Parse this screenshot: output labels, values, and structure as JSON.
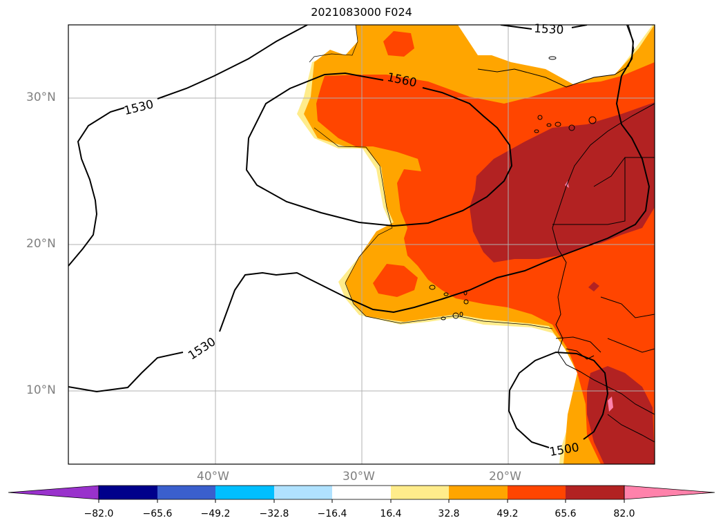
{
  "title": "2021083000 F024",
  "lat_labels": [
    "30°N",
    "20°N",
    "10°N"
  ],
  "lon_labels": [
    "40°W",
    "30°W",
    "20°W"
  ],
  "contour_labels": [
    "1530",
    "1560",
    "1530",
    "1530",
    "1500"
  ],
  "colorbar": {
    "ticks": [
      "−82.0",
      "−65.6",
      "−49.2",
      "−32.8",
      "−16.4",
      "16.4",
      "32.8",
      "49.2",
      "65.6",
      "82.0"
    ],
    "colors": [
      "#9932CC",
      "#00008B",
      "#3A5FCD",
      "#00BFFF",
      "#B0E2FF",
      "#FFFFFF",
      "#FFEC8B",
      "#FFA500",
      "#FF4500",
      "#B22222",
      "#FF82AB"
    ]
  }
}
